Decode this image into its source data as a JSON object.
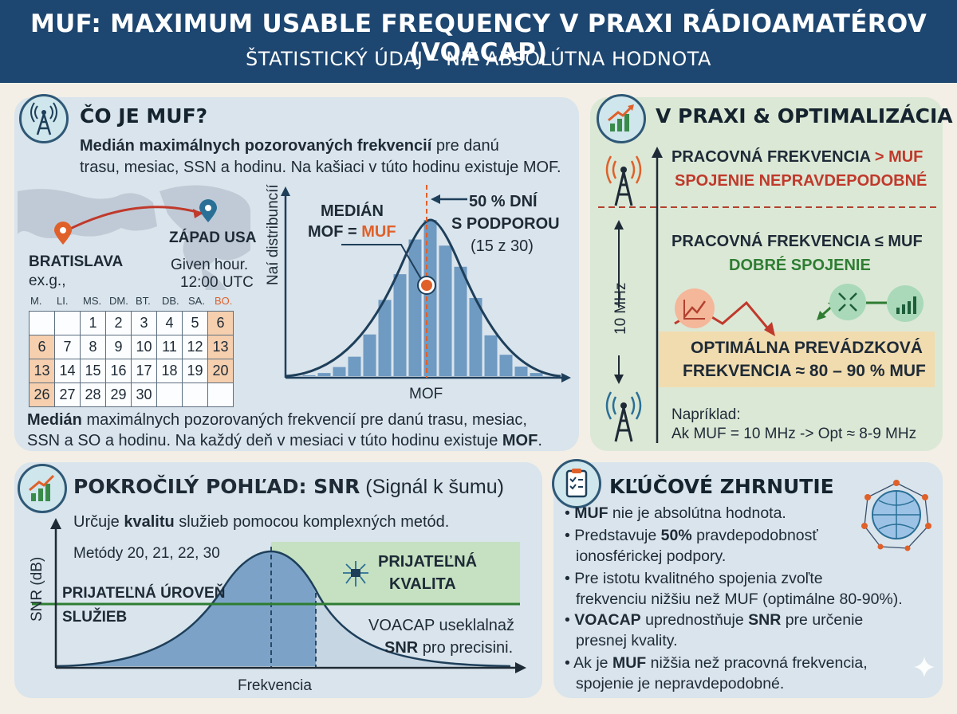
{
  "header": {
    "title": "MUF: MAXIMUM USABLE FREQUENCY V PRAXI RÁDIOAMATÉROV (VOACAP)",
    "subtitle": "ŠTATISTICKÝ ÚDAJ – NIE ABSOLÚTNA HODNOTA"
  },
  "muf_panel": {
    "title": "ČO JE MUF?",
    "intro_bold": "Medián maximálnych pozorovaných frekvencií",
    "intro_rest": " pre danú",
    "intro_line2": "trasu, mesiac, SSN a hodinu. Na kašiaci v túto hodinu existuje MOF.",
    "map": {
      "origin": "BRATISLAVA",
      "origin_note": "ex.g.,",
      "destination": "ZÁPAD USA",
      "time_note_1": "Given hour.",
      "time_note_2": "12:00 UTC"
    },
    "calendar": {
      "days": [
        "M.",
        "LI.",
        "MS.",
        "DM.",
        "BT.",
        "DB.",
        "SA.",
        "BO."
      ],
      "rows": [
        [
          "",
          "",
          "1",
          "2",
          "3",
          "4",
          "5",
          "6"
        ],
        [
          "6",
          "7",
          "8",
          "9",
          "10",
          "11",
          "12",
          "13"
        ],
        [
          "13",
          "14",
          "15",
          "16",
          "17",
          "18",
          "19",
          "20"
        ],
        [
          "26",
          "27",
          "28",
          "29",
          "30",
          "",
          "",
          ""
        ]
      ],
      "highlighted": [
        "0-7",
        "1-0",
        "1-7",
        "2-0",
        "2-7",
        "3-0"
      ]
    },
    "distribution": {
      "ylabel": "Naí distribuncíí",
      "xlabel": "MOF",
      "median_label_1": "MEDIÁN",
      "median_label_2": "MOF = ",
      "median_label_muf": "MUF",
      "days_label_1": "50 % DNÍ",
      "days_label_2": "S PODPOROU",
      "days_label_3": "(15 z 30)"
    },
    "footer_bold_1": "Medián",
    "footer_rest_1": " maximálnych pozorovaných frekvencií pre danú trasu, mesiac,",
    "footer_rest_2": "SSN a SO a hodinu. Na každý deň v mesiaci v túto hodinu existuje ",
    "footer_bold_2": "MOF",
    "footer_end": "."
  },
  "practice_panel": {
    "title": "V PRAXI & OPTIMALIZÁCIA",
    "above_line1": "PRACOVNÁ FREKVENCIA ",
    "above_gt_muf": "> MUF",
    "above_line2": "SPOJENIE NEPRAVDEPODOBNÉ",
    "below_line1": "PRACOVNÁ FREKVENCIA ≤ MUF",
    "below_line2": "DOBRÉ SPOJENIE",
    "axis_label": "10 MHz",
    "optimal_line1": "OPTIMÁLNA PREVÁDZKOVÁ",
    "optimal_line2": "FREKVENCIA ≈ 80 – 90 % MUF",
    "example_1": "Napríklad:",
    "example_2": "Ak MUF = 10 MHz -> Opt ≈ 8-9 MHz"
  },
  "snr_panel": {
    "title_bold": "POKROČILÝ POHĽAD: SNR",
    "title_rest": " (Signál k šumu)",
    "desc_pre": "Určuje ",
    "desc_bold": "kvalitu",
    "desc_post": " služieb pomocou komplexných metód.",
    "methods": "Metódy 20, 21, 22, 30",
    "ylabel": "SNR (dB)",
    "xlabel": "Frekvencia",
    "level_1": "PRIJATEĽNÁ ÚROVEŇ",
    "level_2": "SLUŽIEB",
    "quality_1": "PRIJATEĽNÁ",
    "quality_2": "KVALITA",
    "voacap_1": "VOACAP useklalnaž",
    "voacap_bold": "SNR",
    "voacap_2": " pro precisini."
  },
  "summary_panel": {
    "title": "KĽÚČOVÉ ZHRNUTIE",
    "b1_bold": "MUF",
    "b1_rest": " nie je absolútna hodnota.",
    "b2_pre": "Predstavuje ",
    "b2_bold": "50%",
    "b2_post": " pravdepodobnosť",
    "b2_line2": "ionosférickej podpory.",
    "b3_line1": "Pre istotu kvalitného spojenia zvoľte",
    "b3_line2": "frekvenciu nižšiu než MUF (optimálne 80-90%).",
    "b4_bold1": "VOACAP",
    "b4_mid": " uprednostňuje ",
    "b4_bold2": "SNR",
    "b4_post": " pre určenie",
    "b4_line2": "presnej kvality.",
    "b5_pre": "Ak je ",
    "b5_bold": "MUF",
    "b5_post": " nižšia než pracovná frekvencia,",
    "b5_line2": "spojenie je nepravdepodobné."
  },
  "colors": {
    "header_bg": "#1d4670",
    "accent_orange": "#e0602a",
    "accent_red": "#c0392b",
    "accent_green": "#2e7d32",
    "bar_blue": "#6f9ac2",
    "curve_dark": "#1e3f5a"
  }
}
